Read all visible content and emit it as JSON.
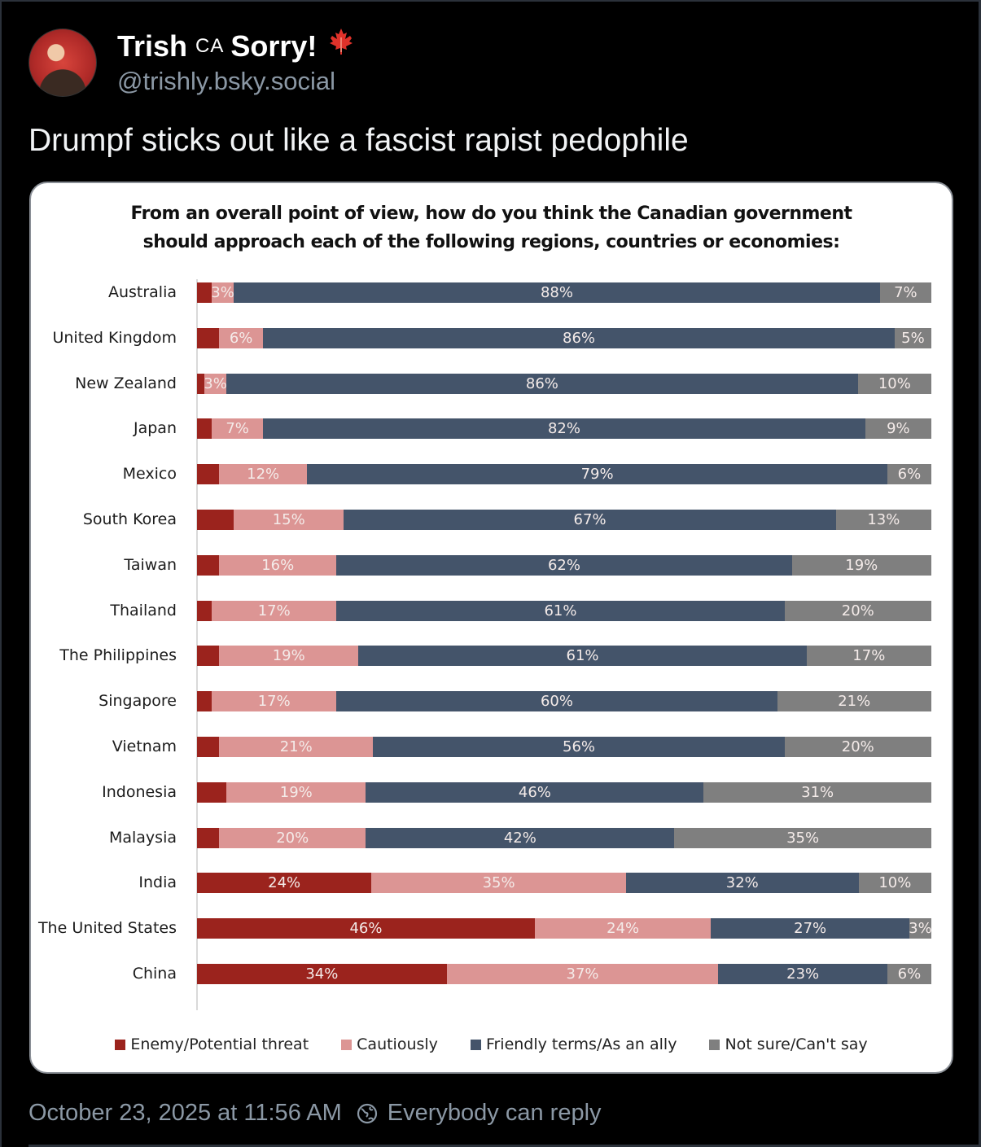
{
  "post": {
    "author": {
      "display_name_first": "Trish",
      "display_name_flag_code": "CA",
      "display_name_last": "Sorry!",
      "display_name_emoji": "🍁",
      "handle": "@trishly.bsky.social",
      "avatar": "avatar-image"
    },
    "text": "Drumpf sticks out like a fascist rapist pedophile",
    "timestamp": "October 23, 2025 at 11:56 AM",
    "reply_setting": "Everybody can reply",
    "reply_icon": "globe-icon"
  },
  "colors": {
    "enemy": "#9b231d",
    "cautious": "#dc9594",
    "friendly": "#44546a",
    "unsure": "#7f7f7f"
  },
  "chart_data": {
    "type": "bar",
    "orientation": "horizontal",
    "stacked": "100%",
    "title": "From an overall point of view, how do you think the Canadian government should approach each of the following regions, countries or economies:",
    "title_lines": [
      "From an overall point of view, how do you think the Canadian government",
      "should approach each of the following regions, countries or economies:"
    ],
    "xlabel": "",
    "ylabel": "",
    "xlim": [
      0,
      100
    ],
    "grid": false,
    "legend_position": "bottom",
    "categories": [
      "Australia",
      "United Kingdom",
      "New Zealand",
      "Japan",
      "Mexico",
      "South Korea",
      "Taiwan",
      "Thailand",
      "The Philippines",
      "Singapore",
      "Vietnam",
      "Indonesia",
      "Malaysia",
      "India",
      "The United States",
      "China"
    ],
    "series": [
      {
        "key": "enemy",
        "name": "Enemy/Potential threat",
        "values": [
          2,
          3,
          1,
          2,
          3,
          5,
          3,
          2,
          3,
          2,
          3,
          4,
          3,
          24,
          46,
          34
        ],
        "labeled": [
          false,
          false,
          false,
          false,
          false,
          false,
          false,
          false,
          false,
          false,
          false,
          false,
          false,
          true,
          true,
          true
        ]
      },
      {
        "key": "cautious",
        "name": "Cautiously",
        "values": [
          3,
          6,
          3,
          7,
          12,
          15,
          16,
          17,
          19,
          17,
          21,
          19,
          20,
          35,
          24,
          37
        ],
        "labeled": [
          true,
          true,
          true,
          true,
          true,
          true,
          true,
          true,
          true,
          true,
          true,
          true,
          true,
          true,
          true,
          true
        ]
      },
      {
        "key": "friendly",
        "name": "Friendly terms/As an ally",
        "values": [
          88,
          86,
          86,
          82,
          79,
          67,
          62,
          61,
          61,
          60,
          56,
          46,
          42,
          32,
          27,
          23
        ],
        "labeled": [
          true,
          true,
          true,
          true,
          true,
          true,
          true,
          true,
          true,
          true,
          true,
          true,
          true,
          true,
          true,
          true
        ]
      },
      {
        "key": "unsure",
        "name": "Not sure/Can't say",
        "values": [
          7,
          5,
          10,
          9,
          6,
          13,
          19,
          20,
          17,
          21,
          20,
          31,
          35,
          10,
          3,
          6
        ],
        "labeled": [
          true,
          true,
          true,
          true,
          true,
          true,
          true,
          true,
          true,
          true,
          true,
          true,
          true,
          true,
          true,
          true
        ]
      }
    ]
  }
}
